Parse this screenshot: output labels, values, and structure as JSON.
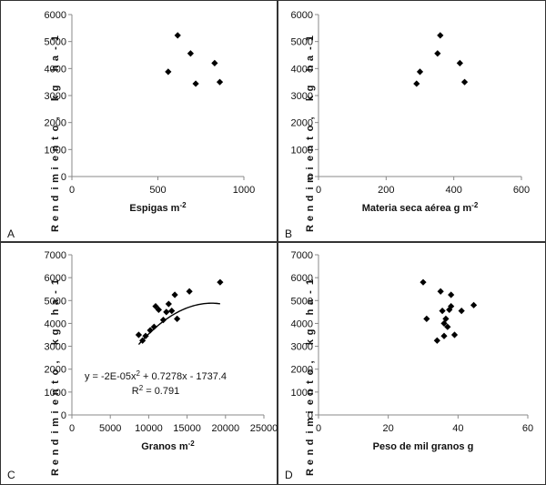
{
  "figure": {
    "chart_data": [
      {
        "type": "scatter",
        "panel_letter": "A",
        "xlabel": "Espigas m",
        "xlabel_sup": "-2",
        "ylabel": "Rendimiento, kg ha",
        "ylabel_sup": "-1",
        "xlim": [
          0,
          1000
        ],
        "ylim": [
          0,
          6000
        ],
        "xticks": [
          0,
          500,
          1000
        ],
        "yticks": [
          0,
          1000,
          2000,
          3000,
          4000,
          5000,
          6000
        ],
        "x": [
          560,
          615,
          690,
          720,
          830,
          860
        ],
        "y": [
          3880,
          5230,
          4560,
          3440,
          4200,
          3500
        ],
        "trendline": null
      },
      {
        "type": "scatter",
        "panel_letter": "B",
        "xlabel": "Materia seca aérea g m",
        "xlabel_sup": "-2",
        "ylabel": "Rendimiento, kg ha",
        "ylabel_sup": "-1",
        "xlim": [
          0,
          600
        ],
        "ylim": [
          0,
          6000
        ],
        "xticks": [
          0,
          200,
          400,
          600
        ],
        "yticks": [
          0,
          1000,
          2000,
          3000,
          4000,
          5000,
          6000
        ],
        "x": [
          290,
          300,
          352,
          360,
          418,
          432
        ],
        "y": [
          3440,
          3880,
          4560,
          5230,
          4200,
          3500
        ],
        "trendline": null
      },
      {
        "type": "scatter",
        "panel_letter": "C",
        "xlabel": "Granos m",
        "xlabel_sup": "-2",
        "ylabel": "Rendimiento, kg ha",
        "ylabel_sup": "-1",
        "xlim": [
          0,
          25000
        ],
        "ylim": [
          0,
          7000
        ],
        "xticks": [
          0,
          5000,
          10000,
          15000,
          20000,
          25000
        ],
        "yticks": [
          0,
          1000,
          2000,
          3000,
          4000,
          5000,
          6000,
          7000
        ],
        "x": [
          8700,
          9200,
          9600,
          10200,
          10700,
          10900,
          11300,
          11900,
          12300,
          12600,
          13000,
          13400,
          13700,
          15300,
          19300
        ],
        "y": [
          3500,
          3250,
          3450,
          3700,
          3850,
          4750,
          4600,
          4150,
          4500,
          4850,
          4550,
          5250,
          4200,
          5400,
          5800
        ],
        "trendline": {
          "kind": "polynomial",
          "coefficients": [
            -2e-05,
            0.7278,
            -1737.4
          ],
          "x_range": [
            8700,
            19300
          ]
        },
        "annotation": {
          "equation_prefix": "y = -2E-05x",
          "equation_sup": "2",
          "equation_suffix": " + 0.7278x - 1737.4",
          "r2_prefix": "R",
          "r2_sup": "2",
          "r2_suffix": " = 0.791"
        }
      },
      {
        "type": "scatter",
        "panel_letter": "D",
        "xlabel": "Peso de mil granos g",
        "xlabel_sup": "",
        "ylabel": "Rendimiento, kg ha",
        "ylabel_sup": "-1",
        "xlim": [
          0,
          60
        ],
        "ylim": [
          0,
          7000
        ],
        "xticks": [
          0,
          20,
          40,
          60
        ],
        "yticks": [
          0,
          1000,
          2000,
          3000,
          4000,
          5000,
          6000,
          7000
        ],
        "x": [
          30,
          31,
          34,
          35,
          35.5,
          36,
          36,
          36.5,
          37,
          37.5,
          38,
          38,
          39,
          41,
          44.5
        ],
        "y": [
          5800,
          4200,
          3250,
          5400,
          4550,
          3450,
          4000,
          4200,
          3850,
          4600,
          5250,
          4750,
          3500,
          4550,
          4800
        ],
        "trendline": null
      }
    ]
  }
}
